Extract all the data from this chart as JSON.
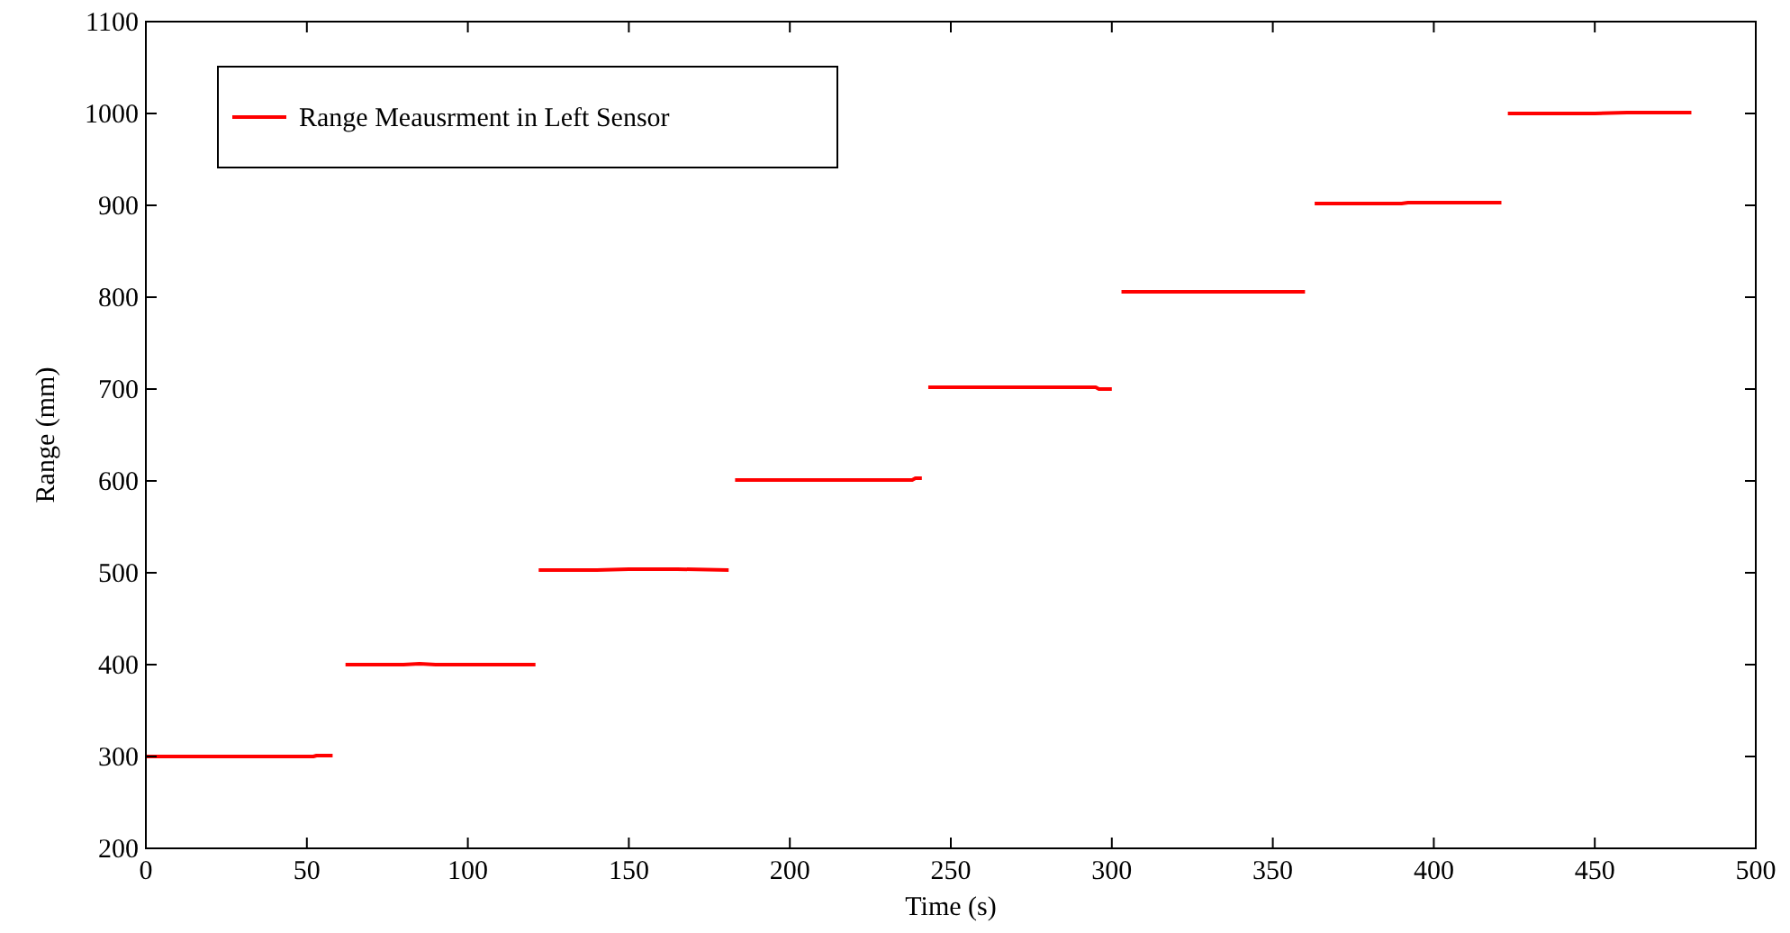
{
  "chart_data": {
    "type": "line",
    "xlabel": "Time (s)",
    "ylabel": "Range (mm)",
    "x": [
      0,
      52,
      53,
      58,
      60,
      62,
      80,
      85,
      90,
      121,
      121.5,
      122,
      140,
      150,
      165,
      181,
      182,
      183,
      238,
      239,
      241,
      242,
      243,
      295,
      296,
      300,
      301,
      303,
      360,
      361,
      363,
      390,
      392,
      421,
      422,
      423,
      450,
      460,
      480
    ],
    "xlim": [
      0,
      500
    ],
    "ylim": [
      200,
      1100
    ],
    "xticks": [
      0,
      50,
      100,
      150,
      200,
      250,
      300,
      350,
      400,
      450,
      500
    ],
    "yticks": [
      200,
      300,
      400,
      500,
      600,
      700,
      800,
      900,
      1000,
      1100
    ],
    "series": [
      {
        "name": "Range Meausrment in Left Sensor",
        "color": "#ff0000",
        "values": [
          300,
          300,
          301,
          301,
          null,
          400,
          400,
          401,
          400,
          400,
          null,
          503,
          503,
          504,
          504,
          503,
          null,
          601,
          601,
          603,
          603,
          null,
          702,
          702,
          700,
          700,
          null,
          806,
          806,
          null,
          902,
          902,
          903,
          903,
          null,
          1000,
          1000,
          1001,
          1001
        ]
      }
    ],
    "legend": "top left",
    "grid": false,
    "marker": "none",
    "line_style": "solid"
  }
}
